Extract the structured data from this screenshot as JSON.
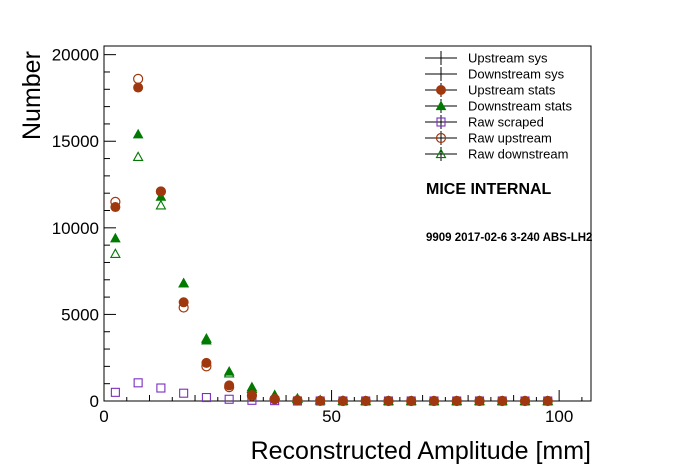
{
  "chart_data": {
    "type": "scatter",
    "xlabel": "Reconstructed Amplitude [mm]",
    "ylabel": "Number",
    "xlim": [
      0,
      107
    ],
    "ylim": [
      0,
      20500
    ],
    "x_ticks": [
      0,
      50,
      100
    ],
    "y_ticks": [
      0,
      5000,
      10000,
      15000,
      20000
    ],
    "grid": false,
    "legend_position": "top-right",
    "annotations": [
      "MICE INTERNAL",
      "9909 2017-02-6 3-240 ABS-LH2"
    ],
    "x": [
      2.5,
      7.5,
      12.5,
      17.5,
      22.5,
      27.5,
      32.5,
      37.5,
      42.5,
      47.5,
      52.5,
      57.5,
      62.5,
      67.5,
      72.5,
      77.5,
      82.5,
      87.5,
      92.5,
      97.5
    ],
    "series": [
      {
        "name": "Upstream sys",
        "marker": "cross",
        "color": "#000000",
        "values": []
      },
      {
        "name": "Downstream sys",
        "marker": "cross",
        "color": "#000000",
        "values": []
      },
      {
        "name": "Upstream stats",
        "marker": "filled-circle",
        "color": "#a0380f",
        "values": [
          11200,
          18100,
          12100,
          5700,
          2200,
          900,
          350,
          120,
          40,
          10,
          0,
          0,
          0,
          0,
          0,
          0,
          0,
          0,
          0,
          0
        ]
      },
      {
        "name": "Downstream stats",
        "marker": "filled-triangle",
        "color": "#007a00",
        "values": [
          9400,
          15400,
          11800,
          6800,
          3500,
          1700,
          800,
          350,
          150,
          50,
          20,
          0,
          0,
          0,
          0,
          0,
          0,
          0,
          0,
          0
        ]
      },
      {
        "name": "Raw scraped",
        "marker": "open-square",
        "color": "#7b2fbe",
        "values": [
          500,
          1050,
          750,
          450,
          200,
          100,
          40,
          20,
          0,
          0,
          0,
          0,
          0,
          0,
          0,
          0,
          0,
          0,
          0,
          0
        ]
      },
      {
        "name": "Raw upstream",
        "marker": "open-circle",
        "color": "#a0380f",
        "values": [
          11500,
          18600,
          12100,
          5400,
          2000,
          800,
          300,
          100,
          30,
          10,
          0,
          0,
          0,
          0,
          0,
          0,
          0,
          0,
          0,
          0
        ]
      },
      {
        "name": "Raw downstream",
        "marker": "open-triangle",
        "color": "#007a00",
        "values": [
          8500,
          14100,
          11300,
          6800,
          3600,
          1600,
          700,
          300,
          120,
          40,
          10,
          0,
          0,
          0,
          0,
          0,
          0,
          0,
          0,
          0
        ]
      }
    ]
  }
}
